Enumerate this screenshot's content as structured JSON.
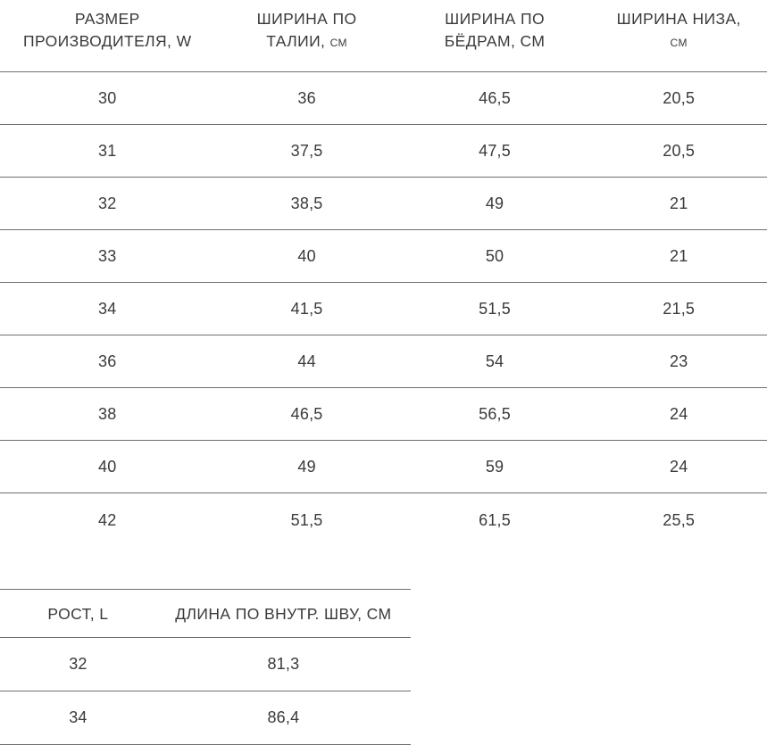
{
  "colors": {
    "background": "#ffffff",
    "text": "#3a3a3a",
    "border": "#6e6e6e"
  },
  "size_table": {
    "columns": [
      "РАЗМЕР ПРОИЗВОДИТЕЛЯ, W",
      "ШИРИНА ПО ТАЛИИ, см",
      "ШИРИНА ПО БЁДРАМ, СМ",
      "ШИРИНА НИЗА, см"
    ],
    "rows": [
      [
        "30",
        "36",
        "46,5",
        "20,5"
      ],
      [
        "31",
        "37,5",
        "47,5",
        "20,5"
      ],
      [
        "32",
        "38,5",
        "49",
        "21"
      ],
      [
        "33",
        "40",
        "50",
        "21"
      ],
      [
        "34",
        "41,5",
        "51,5",
        "21,5"
      ],
      [
        "36",
        "44",
        "54",
        "23"
      ],
      [
        "38",
        "46,5",
        "56,5",
        "24"
      ],
      [
        "40",
        "49",
        "59",
        "24"
      ],
      [
        "42",
        "51,5",
        "61,5",
        "25,5"
      ]
    ]
  },
  "length_table": {
    "columns": [
      "РОСТ, L",
      "ДЛИНА ПО ВНУТР. ШВУ, СМ"
    ],
    "rows": [
      [
        "32",
        "81,3"
      ],
      [
        "34",
        "86,4"
      ]
    ]
  }
}
